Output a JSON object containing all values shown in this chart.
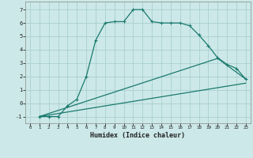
{
  "xlabel": "Humidex (Indice chaleur)",
  "bg_color": "#cce8e8",
  "grid_color": "#aacfcf",
  "line_color": "#1a7a6e",
  "xlim": [
    -0.5,
    23.5
  ],
  "ylim": [
    -1.5,
    7.6
  ],
  "xticks": [
    0,
    1,
    2,
    3,
    4,
    5,
    6,
    7,
    8,
    9,
    10,
    11,
    12,
    13,
    14,
    15,
    16,
    17,
    18,
    19,
    20,
    21,
    22,
    23
  ],
  "yticks": [
    -1,
    0,
    1,
    2,
    3,
    4,
    5,
    6,
    7
  ],
  "line1_x": [
    1,
    2,
    3,
    4,
    5,
    6,
    7,
    8,
    9,
    10,
    11,
    12,
    13,
    14,
    15,
    16,
    17,
    18,
    19,
    20,
    21,
    22,
    23
  ],
  "line1_y": [
    -1,
    -1,
    -1,
    -0.2,
    0.3,
    2.0,
    4.7,
    6.0,
    6.1,
    6.1,
    7.0,
    7.0,
    6.1,
    6.0,
    6.0,
    6.0,
    5.8,
    5.1,
    4.3,
    3.4,
    2.9,
    2.6,
    1.8
  ],
  "line2_x": [
    1,
    20,
    23
  ],
  "line2_y": [
    -1,
    3.35,
    1.8
  ],
  "line3_x": [
    1,
    23
  ],
  "line3_y": [
    -1,
    1.5
  ],
  "marker": "+"
}
